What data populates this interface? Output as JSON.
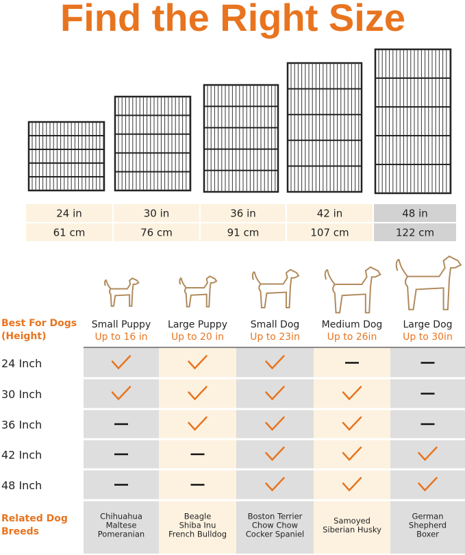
{
  "title": "Find the Right Size",
  "sizes": {
    "inches": [
      "24 in",
      "30 in",
      "36 in",
      "42 in",
      "48 in"
    ],
    "cm": [
      "61 cm",
      "76 cm",
      "91 cm",
      "107 cm",
      "122 cm"
    ]
  },
  "fit_table": {
    "header_label": [
      "Best For Dogs",
      "(Height)"
    ],
    "dogs": [
      {
        "name": "Small Puppy",
        "height": "Up to 16 in"
      },
      {
        "name": "Large Puppy",
        "height": "Up to 20 in"
      },
      {
        "name": "Small Dog",
        "height": "Up to 23in"
      },
      {
        "name": "Medium Dog",
        "height": "Up to 26in"
      },
      {
        "name": "Large Dog",
        "height": "Up to 30in"
      }
    ],
    "rows": [
      {
        "label": "24 Inch",
        "fits": [
          true,
          true,
          true,
          false,
          false
        ]
      },
      {
        "label": "30 Inch",
        "fits": [
          true,
          true,
          true,
          true,
          false
        ]
      },
      {
        "label": "36 Inch",
        "fits": [
          false,
          true,
          true,
          true,
          false
        ]
      },
      {
        "label": "42 Inch",
        "fits": [
          false,
          false,
          true,
          true,
          true
        ]
      },
      {
        "label": "48 Inch",
        "fits": [
          false,
          false,
          true,
          true,
          true
        ]
      }
    ],
    "breeds_label": [
      "Related Dog",
      "Breeds"
    ],
    "breeds": [
      [
        "Chihuahua",
        "Maltese",
        "Pomeranian"
      ],
      [
        "Beagle",
        "Shiba Inu",
        "French Bulldog"
      ],
      [
        "Boston Terrier",
        "Chow Chow",
        "Cocker Spaniel"
      ],
      [
        "Samoyed",
        "Siberian Husky"
      ],
      [
        "German",
        "Shepherd",
        "Boxer"
      ]
    ]
  }
}
